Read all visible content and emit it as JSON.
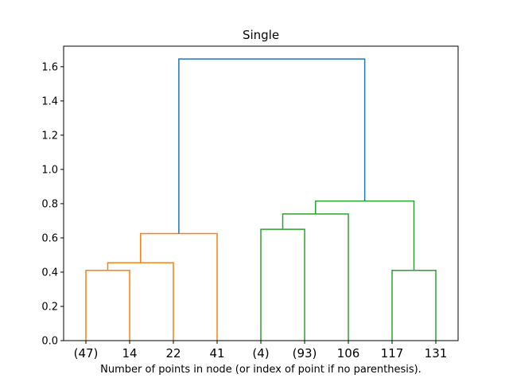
{
  "chart_data": {
    "type": "dendrogram",
    "title": "Single",
    "xlabel": "Number of points in node (or index of point if no parenthesis).",
    "ylabel": "",
    "ylim": [
      0,
      1.72
    ],
    "yticks": [
      "0.0",
      "0.2",
      "0.4",
      "0.6",
      "0.8",
      "1.0",
      "1.2",
      "1.4",
      "1.6"
    ],
    "leaves": [
      "(47)",
      "14",
      "22",
      "41",
      "(4)",
      "(93)",
      "106",
      "117",
      "131"
    ],
    "grid": false,
    "colors": {
      "cluster1": "#ff7f0e",
      "cluster2": "#2ca02c",
      "root": "#1f77b4"
    },
    "links": [
      {
        "left": 0,
        "right": 1,
        "height": 0.41,
        "color": "cluster1"
      },
      {
        "left": 0.5,
        "right": 2,
        "height": 0.455,
        "color": "cluster1"
      },
      {
        "left": 1.25,
        "right": 3,
        "height": 0.625,
        "color": "cluster1"
      },
      {
        "left": 4,
        "right": 5,
        "height": 0.65,
        "color": "cluster2"
      },
      {
        "left": 4.5,
        "right": 6,
        "height": 0.74,
        "color": "cluster2"
      },
      {
        "left": 7,
        "right": 8,
        "height": 0.41,
        "color": "cluster2"
      },
      {
        "left": 5.25,
        "right": 7.5,
        "height": 0.815,
        "color": "cluster2"
      },
      {
        "left": 2.125,
        "right": 6.375,
        "height": 1.645,
        "color": "root"
      }
    ]
  }
}
